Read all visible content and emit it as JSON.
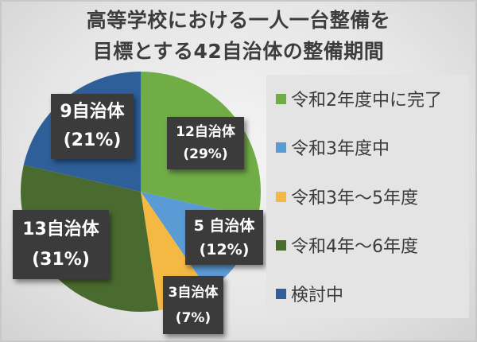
{
  "title": {
    "line1": "高等学校における一人一台整備を",
    "line2": "目標とする42自治体の整備期間"
  },
  "colors": {
    "reiwa2_complete": "#70ad47",
    "reiwa3": "#5b9bd5",
    "reiwa3_5": "#f4b942",
    "reiwa4_6": "#4a6b2f",
    "under_review": "#2e5f99",
    "label_bg": "#3b3b3b"
  },
  "legend": {
    "items": [
      {
        "label": "令和2年度中に完了",
        "color": "#70ad47"
      },
      {
        "label": "令和3年度中",
        "color": "#5b9bd5"
      },
      {
        "label": "令和3年〜5年度",
        "color": "#f4b942"
      },
      {
        "label": "令和4年〜6年度",
        "color": "#4a6b2f"
      },
      {
        "label": "検討中",
        "color": "#2e5f99"
      }
    ]
  },
  "labels": {
    "green": {
      "count": "12自治体",
      "pct": "(29%)"
    },
    "lightblue": {
      "count": "5 自治体",
      "pct": "(12%)"
    },
    "yellow": {
      "count": "3自治体",
      "pct": "(7%)"
    },
    "darkgreen": {
      "count": "13自治体",
      "pct": "(31%)"
    },
    "blue": {
      "count": "9自治体",
      "pct": "(21%)"
    }
  },
  "chart_data": {
    "type": "pie",
    "title": "高等学校における一人一台整備を目標とする42自治体の整備期間",
    "total": 42,
    "unit": "自治体",
    "categories": [
      "令和2年度中に完了",
      "令和3年度中",
      "令和3年〜5年度",
      "令和4年〜6年度",
      "検討中"
    ],
    "values": [
      12,
      5,
      3,
      13,
      9
    ],
    "percentages": [
      29,
      12,
      7,
      31,
      21
    ],
    "colors": [
      "#70ad47",
      "#5b9bd5",
      "#f4b942",
      "#4a6b2f",
      "#2e5f99"
    ],
    "data_labels": [
      "12自治体 (29%)",
      "5 自治体 (12%)",
      "3自治体 (7%)",
      "13自治体 (31%)",
      "9自治体 (21%)"
    ],
    "start_angle": "12 o'clock, clockwise",
    "legend_position": "right"
  }
}
